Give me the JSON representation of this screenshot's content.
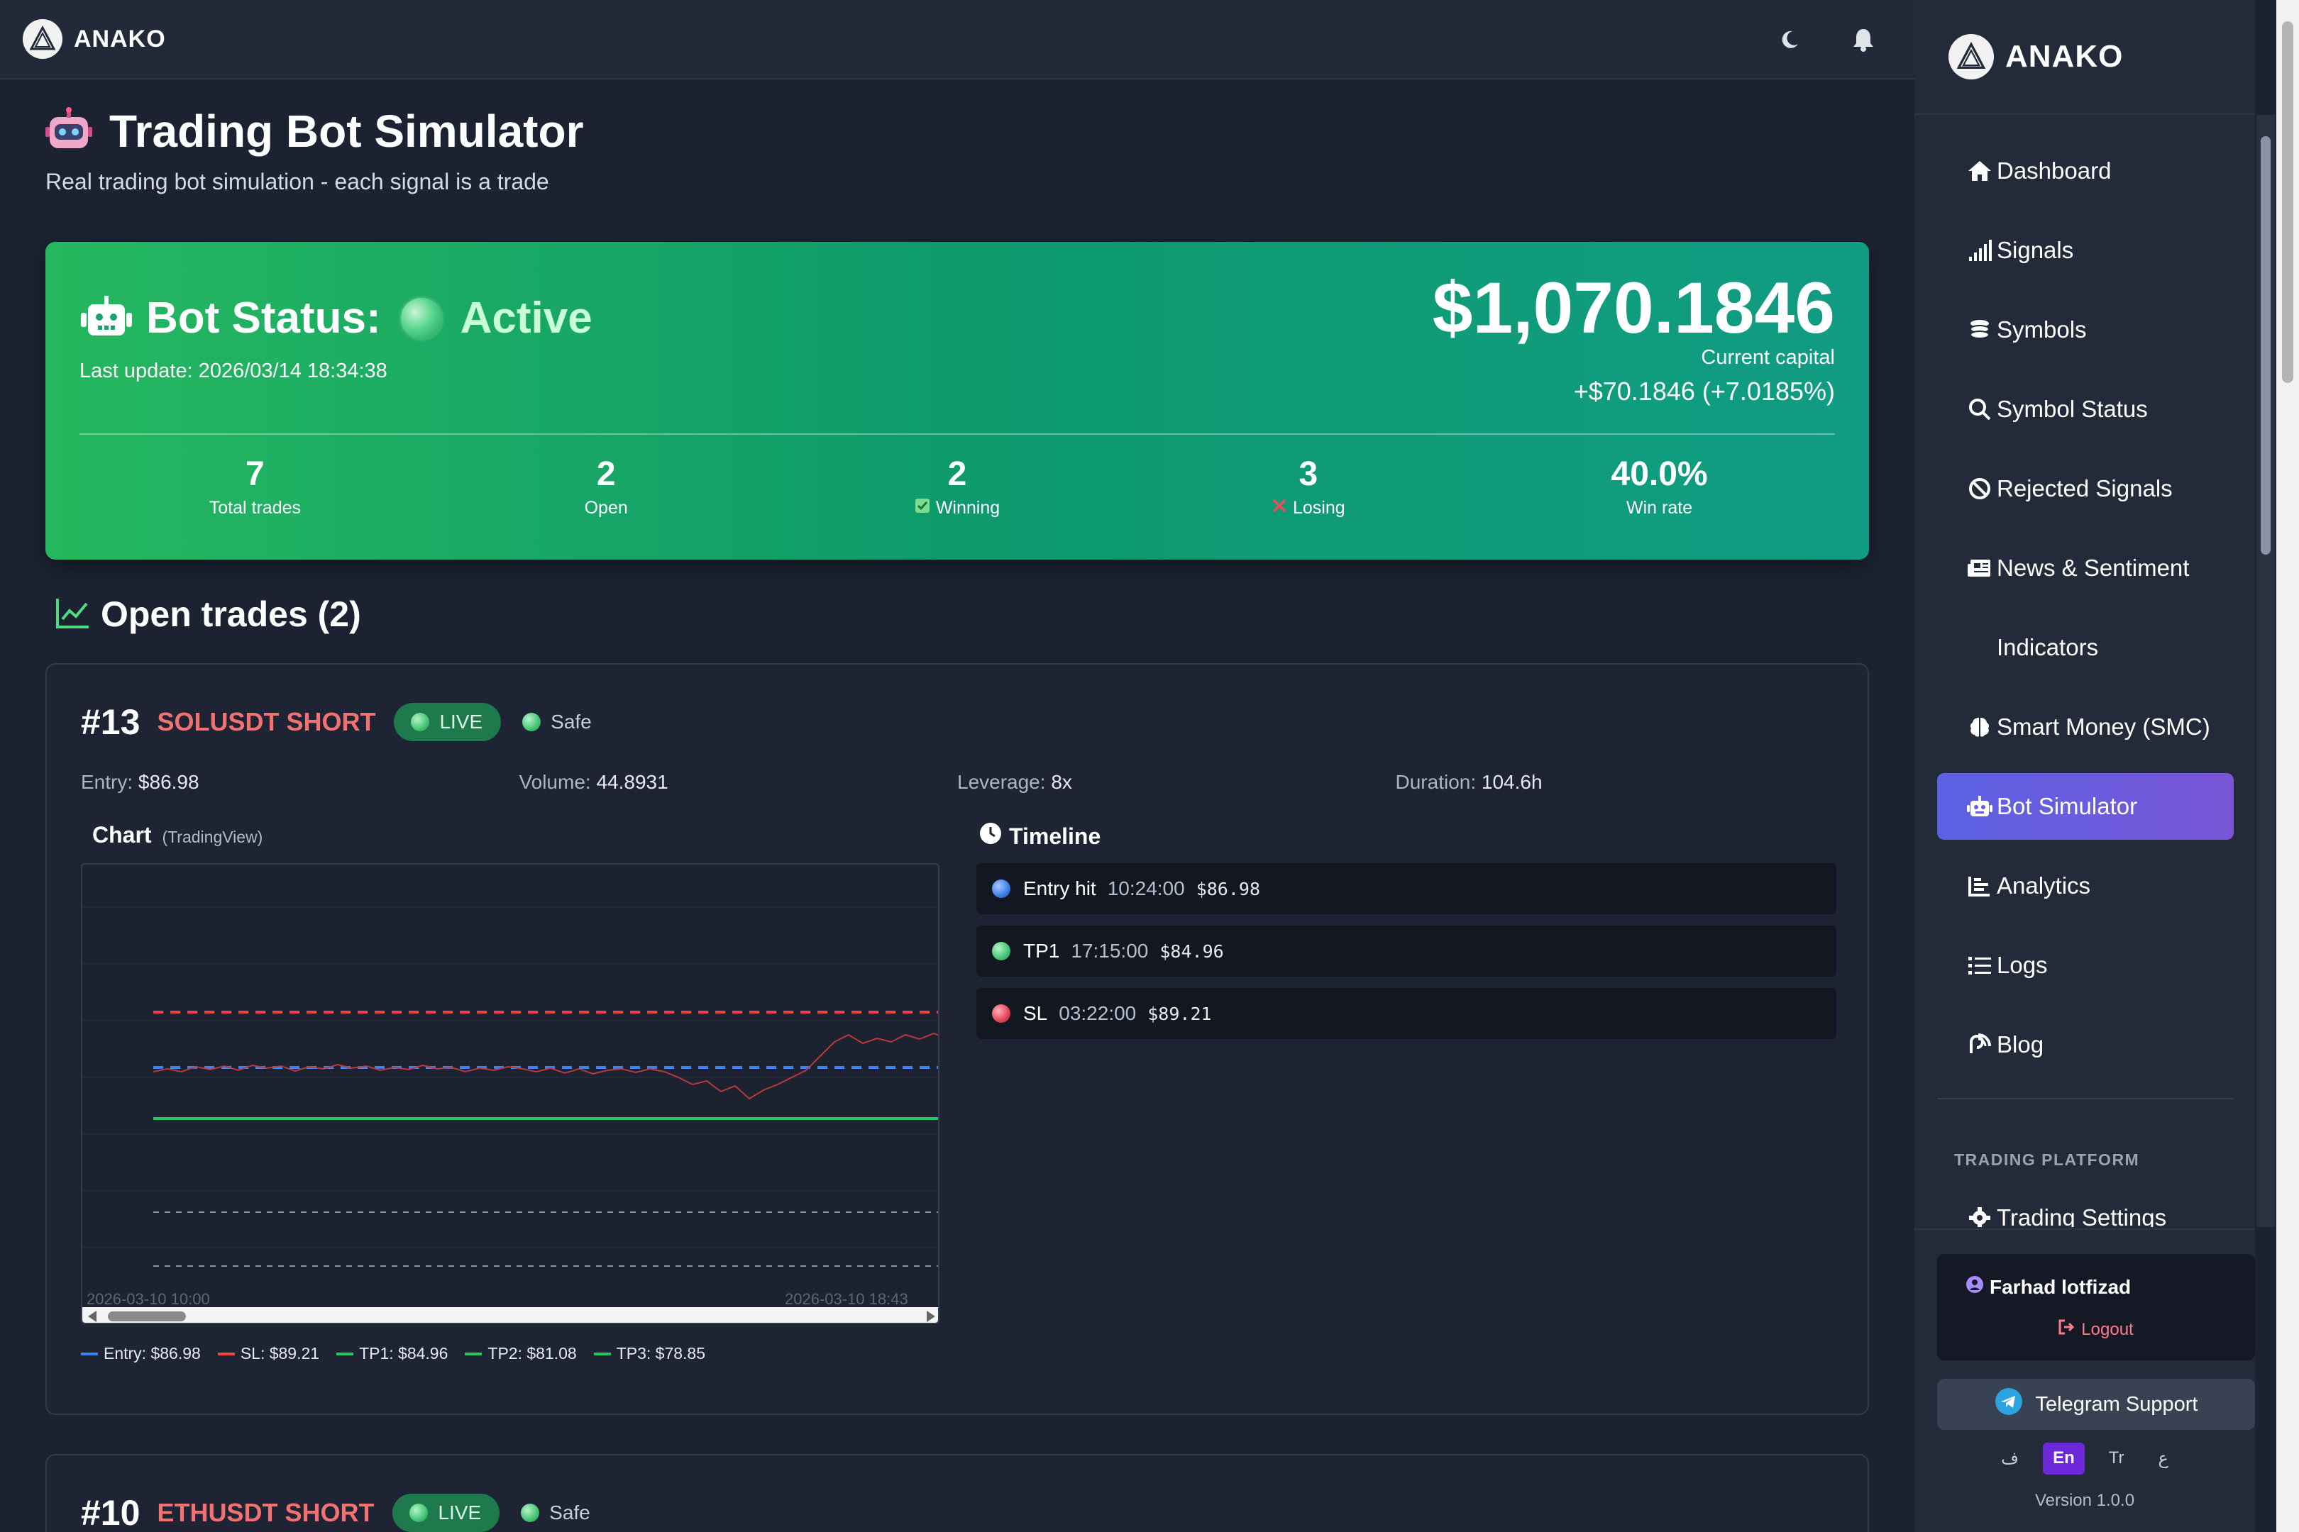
{
  "app": {
    "brand": "ANAKO"
  },
  "page": {
    "title": "Trading Bot Simulator",
    "subtitle": "Real trading bot simulation - each signal is a trade"
  },
  "status": {
    "label": "Bot Status:",
    "state": "Active",
    "last_update": "Last update: 2026/03/14 18:34:38",
    "capital": "$1,070.1846",
    "capital_label": "Current capital",
    "gain": "+$70.1846 (+7.0185%)",
    "stats": [
      {
        "value": "7",
        "label": "Total trades"
      },
      {
        "value": "2",
        "label": "Open"
      },
      {
        "value": "2",
        "label": "Winning"
      },
      {
        "value": "3",
        "label": "Losing"
      },
      {
        "value": "40.0%",
        "label": "Win rate"
      }
    ]
  },
  "open_trades": {
    "title": "Open trades (2)",
    "trades": [
      {
        "num": "#13",
        "symbol": "SOLUSDT SHORT",
        "badge": "LIVE",
        "risk": "Safe",
        "entry_label": "Entry:",
        "entry": "$86.98",
        "volume_label": "Volume:",
        "volume": "44.8931",
        "leverage_label": "Leverage:",
        "leverage": "8x",
        "duration_label": "Duration:",
        "duration": "104.6h",
        "chart_title": "Chart",
        "chart_source": "(TradingView)",
        "chart_start": "2026-03-10 10:00",
        "chart_end": "2026-03-10 18:43",
        "legend": [
          {
            "label": "Entry: $86.98",
            "color": "#3b82f6"
          },
          {
            "label": "SL: $89.21",
            "color": "#ef4444"
          },
          {
            "label": "TP1: $84.96",
            "color": "#22c55e"
          },
          {
            "label": "TP2: $81.08",
            "color": "#22c55e"
          },
          {
            "label": "TP3: $78.85",
            "color": "#22c55e"
          }
        ],
        "timeline_title": "Timeline",
        "timeline": [
          {
            "event": "Entry hit",
            "time": "10:24:00",
            "price": "$86.98",
            "color": "blue"
          },
          {
            "event": "TP1",
            "time": "17:15:00",
            "price": "$84.96",
            "color": "green"
          },
          {
            "event": "SL",
            "time": "03:22:00",
            "price": "$89.21",
            "color": "red"
          }
        ]
      },
      {
        "num": "#10",
        "symbol": "ETHUSDT SHORT",
        "badge": "LIVE",
        "risk": "Safe"
      }
    ]
  },
  "sidebar": {
    "brand": "ANAKO",
    "items": [
      {
        "label": "Dashboard",
        "icon": "home-icon"
      },
      {
        "label": "Signals",
        "icon": "signal-bars-icon"
      },
      {
        "label": "Symbols",
        "icon": "coins-icon"
      },
      {
        "label": "Symbol Status",
        "icon": "search-icon"
      },
      {
        "label": "Rejected Signals",
        "icon": "ban-icon"
      },
      {
        "label": "News & Sentiment",
        "icon": "newspaper-icon"
      },
      {
        "label": "Indicators",
        "icon": ""
      },
      {
        "label": "Smart Money (SMC)",
        "icon": "brain-icon"
      },
      {
        "label": "Bot Simulator",
        "icon": "robot-icon"
      },
      {
        "label": "Analytics",
        "icon": "chart-icon"
      },
      {
        "label": "Logs",
        "icon": "list-icon"
      },
      {
        "label": "Blog",
        "icon": "blog-icon"
      }
    ],
    "section": "TRADING PLATFORM",
    "section_item": "Trading Settings",
    "user": "Farhad lotfizad",
    "logout": "Logout",
    "telegram": "Telegram Support",
    "languages": [
      "ف",
      "En",
      "Tr",
      "ع"
    ],
    "active_language": "En",
    "version": "Version 1.0.0"
  },
  "colors": {
    "accent_green": "#0e9a6c",
    "active_menu": "#6b5cdf",
    "short_red": "#f27272"
  }
}
